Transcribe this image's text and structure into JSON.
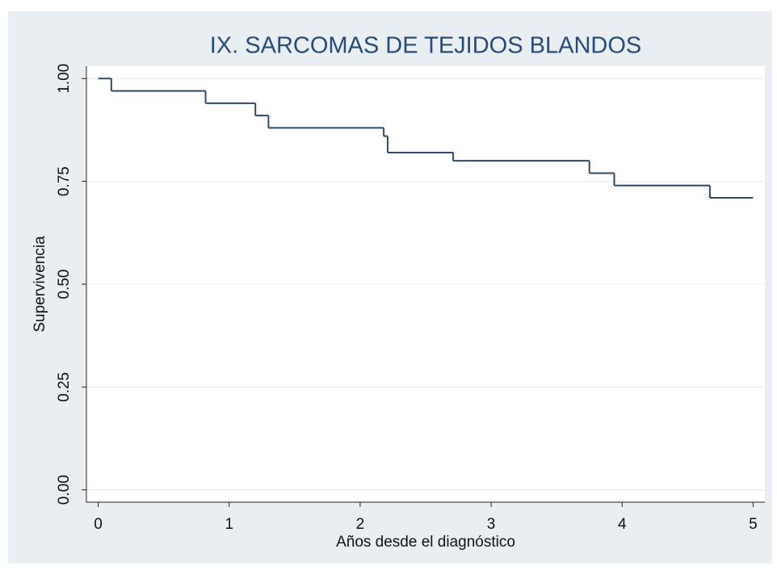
{
  "chart_data": {
    "type": "step",
    "title": "IX. SARCOMAS DE TEJIDOS BLANDOS",
    "x_label": "Años desde el diagnóstico",
    "y_label": "Supervivencia",
    "x": [
      0,
      0.1,
      0.82,
      1.2,
      1.3,
      2.18,
      2.21,
      2.71,
      3.75,
      3.94,
      4.67,
      5
    ],
    "values": [
      1,
      0.97,
      0.94,
      0.91,
      0.88,
      0.86,
      0.82,
      0.8,
      0.77,
      0.74,
      0.71,
      0.71
    ],
    "color": "#2e4a68",
    "xlim": [
      -0.09,
      5.09
    ],
    "xticks": [
      0,
      1,
      2,
      3,
      4,
      5
    ],
    "ylim": [
      -0.03,
      1.03
    ],
    "yticks": [
      {
        "value": 0,
        "label": "0.00"
      },
      {
        "value": 0.25,
        "label": "0.25"
      },
      {
        "value": 0.5,
        "label": "0.50"
      },
      {
        "value": 0.75,
        "label": "0.75"
      },
      {
        "value": 1,
        "label": "1.00"
      }
    ],
    "grid": true
  }
}
